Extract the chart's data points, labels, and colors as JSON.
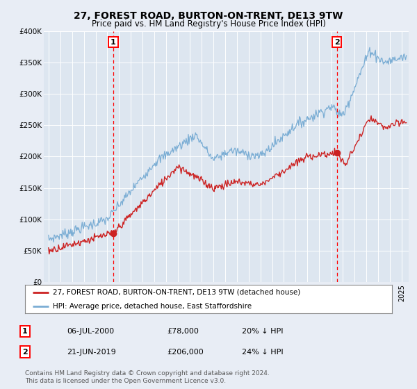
{
  "title": "27, FOREST ROAD, BURTON-ON-TRENT, DE13 9TW",
  "subtitle": "Price paid vs. HM Land Registry's House Price Index (HPI)",
  "title_fontsize": 10,
  "subtitle_fontsize": 8.5,
  "background_color": "#e8edf5",
  "plot_bg_color": "#dde6f0",
  "grid_color": "#ffffff",
  "ylim": [
    0,
    400000
  ],
  "yticks": [
    0,
    50000,
    100000,
    150000,
    200000,
    250000,
    300000,
    350000,
    400000
  ],
  "ytick_labels": [
    "£0",
    "£50K",
    "£100K",
    "£150K",
    "£200K",
    "£250K",
    "£300K",
    "£350K",
    "£400K"
  ],
  "hpi_color": "#7aadd4",
  "price_color": "#cc2222",
  "marker1_date_x": 2000.5,
  "marker1_price": 78000,
  "marker1_label": "06-JUL-2000",
  "marker1_value": "£78,000",
  "marker1_hpi": "20% ↓ HPI",
  "marker2_date_x": 2019.5,
  "marker2_price": 206000,
  "marker2_label": "21-JUN-2019",
  "marker2_value": "£206,000",
  "marker2_hpi": "24% ↓ HPI",
  "legend_line1": "27, FOREST ROAD, BURTON-ON-TRENT, DE13 9TW (detached house)",
  "legend_line2": "HPI: Average price, detached house, East Staffordshire",
  "footer": "Contains HM Land Registry data © Crown copyright and database right 2024.\nThis data is licensed under the Open Government Licence v3.0.",
  "xlim_start": 1994.6,
  "xlim_end": 2025.6
}
